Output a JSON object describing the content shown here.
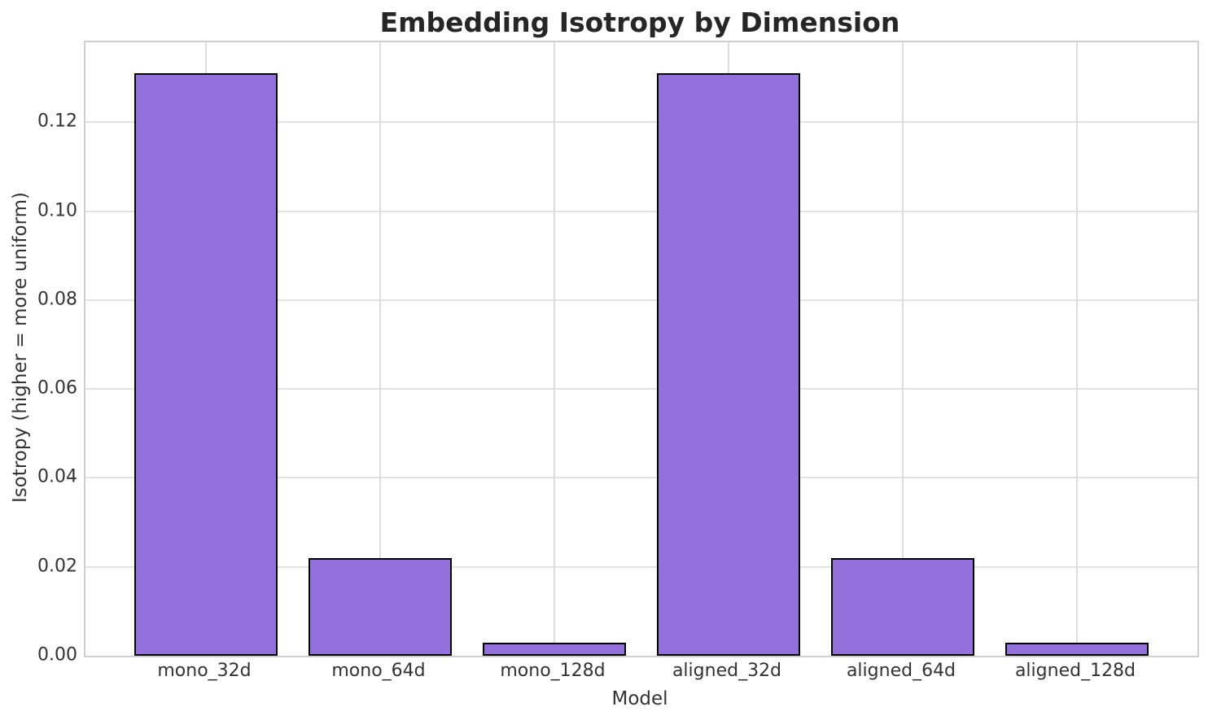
{
  "chart_data": {
    "type": "bar",
    "title": "Embedding Isotropy by Dimension",
    "xlabel": "Model",
    "ylabel": "Isotropy (higher = more uniform)",
    "categories": [
      "mono_32d",
      "mono_64d",
      "mono_128d",
      "aligned_32d",
      "aligned_64d",
      "aligned_128d"
    ],
    "values": [
      0.131,
      0.022,
      0.003,
      0.131,
      0.022,
      0.003
    ],
    "ylim": [
      0,
      0.138
    ],
    "yticks": [
      0,
      0.02,
      0.04,
      0.06,
      0.08,
      0.1,
      0.12
    ],
    "ytick_labels": [
      "0.00",
      "0.02",
      "0.04",
      "0.06",
      "0.08",
      "0.10",
      "0.12"
    ],
    "grid": true,
    "legend": "none",
    "bar_color": "#9370DB",
    "bar_edge_color": "#000000",
    "grid_color": "#e2e2e2",
    "text_color": "#333333",
    "title_color": "#262626"
  }
}
